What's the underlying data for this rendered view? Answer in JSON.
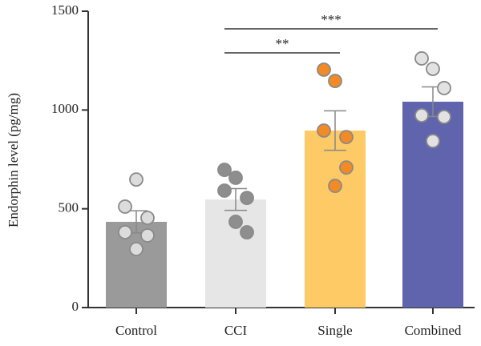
{
  "chart_data": {
    "type": "bar",
    "y_label": "Endorphin level (pg/mg)",
    "categories": [
      "Control",
      "CCI",
      "Single",
      "Combined"
    ],
    "values": [
      434,
      547,
      896,
      1042
    ],
    "errors": [
      56,
      55,
      100,
      75
    ],
    "points": [
      [
        648,
        511,
        454,
        381,
        365,
        296
      ],
      [
        657,
        697,
        555,
        592,
        381,
        434
      ],
      [
        1147,
        1204,
        863,
        896,
        709,
        616
      ],
      [
        1208,
        1261,
        1111,
        973,
        965,
        843
      ]
    ],
    "colors": [
      "#9a9a9a",
      "#e6e6e6",
      "#fdca66",
      "#5f64ad"
    ],
    "point_colors": [
      "#dcdcdc",
      "#8e8e8e",
      "#f28a26",
      "#e2e2e2"
    ],
    "ylim": [
      0,
      1500
    ],
    "yticks": [
      0,
      500,
      1000,
      1500
    ],
    "grid": false,
    "annotations": [
      {
        "label": "**",
        "from": "CCI",
        "to": "Single"
      },
      {
        "label": "***",
        "from": "CCI",
        "to": "Combined"
      }
    ]
  }
}
